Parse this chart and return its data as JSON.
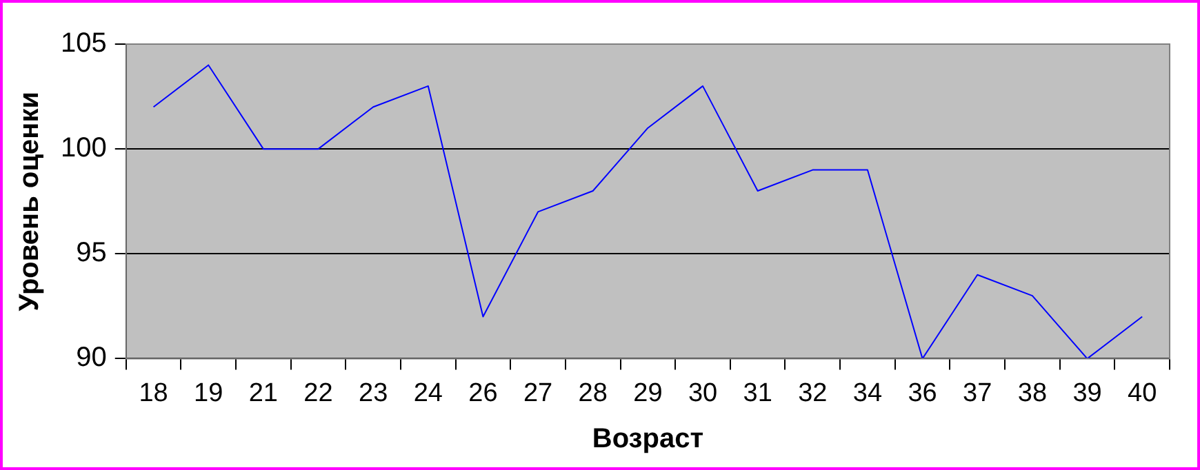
{
  "chart_data": {
    "type": "line",
    "xlabel": "Возраст",
    "ylabel": "Уровень оценки",
    "categories": [
      "18",
      "19",
      "21",
      "22",
      "23",
      "24",
      "26",
      "27",
      "28",
      "29",
      "30",
      "31",
      "32",
      "34",
      "36",
      "37",
      "38",
      "39",
      "40"
    ],
    "series": [
      {
        "color": "#0000ff",
        "values": [
          102,
          104,
          100,
          100,
          102,
          103,
          92,
          97,
          98,
          101,
          103,
          98,
          99,
          99,
          90,
          94,
          93,
          90,
          92
        ]
      }
    ],
    "ylim": [
      90,
      105
    ],
    "yticks": [
      90,
      95,
      100,
      105
    ],
    "grid": "y",
    "legend": false,
    "marker": "none",
    "line_style": "solid"
  }
}
